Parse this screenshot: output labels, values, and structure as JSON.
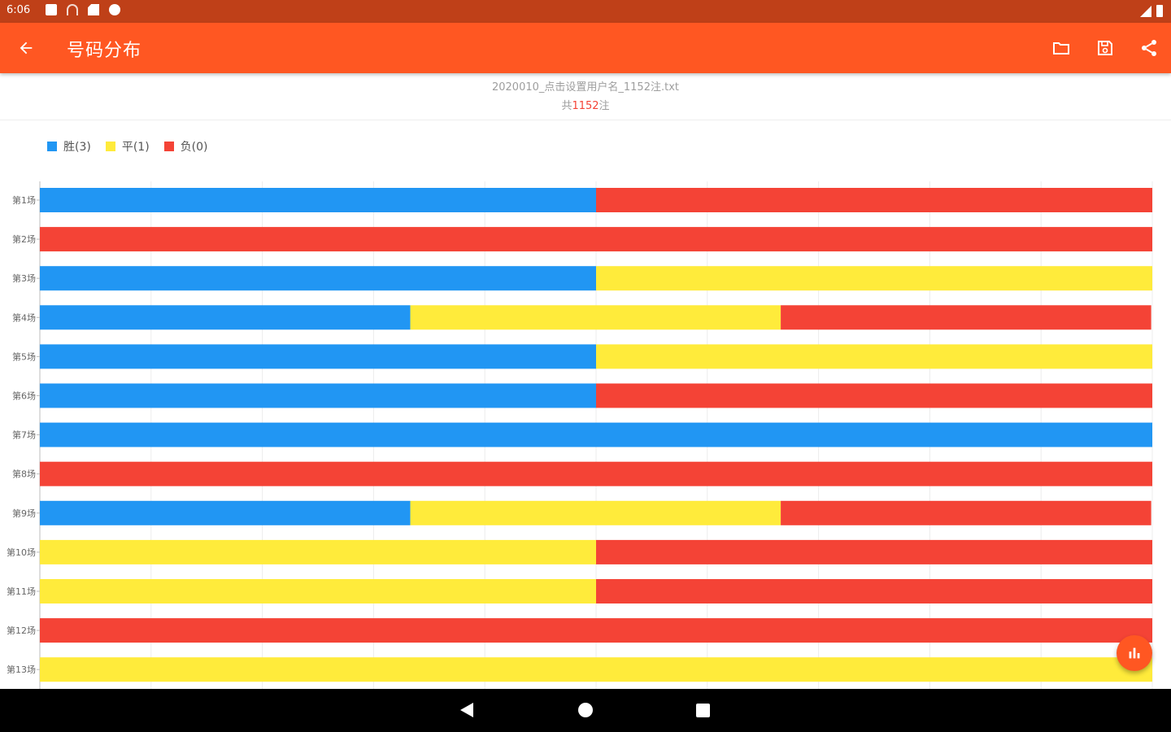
{
  "status_bar": {
    "time": "6:06"
  },
  "app_bar": {
    "title": "号码分布",
    "icons": [
      "back-arrow-icon",
      "folder-icon",
      "save-icon",
      "share-icon"
    ]
  },
  "file_info": {
    "file_name": "2020010_点击设置用户名_1152注.txt",
    "count_prefix": "共",
    "count_value": "1152",
    "count_suffix": "注"
  },
  "colors": {
    "win": "#2196f3",
    "draw": "#ffeb3b",
    "lose": "#f44336",
    "accent": "#ff5722"
  },
  "legend": [
    {
      "label": "胜(3)",
      "color": "#2196f3"
    },
    {
      "label": "平(1)",
      "color": "#ffeb3b"
    },
    {
      "label": "负(0)",
      "color": "#f44336"
    }
  ],
  "chart_data": {
    "type": "bar",
    "orientation": "horizontal",
    "stacked": true,
    "percent": true,
    "categories": [
      "第1场",
      "第2场",
      "第3场",
      "第4场",
      "第5场",
      "第6场",
      "第7场",
      "第8场",
      "第9场",
      "第10场",
      "第11场",
      "第12场",
      "第13场"
    ],
    "series": [
      {
        "name": "胜(3)",
        "color": "#2196f3",
        "values": [
          0.5,
          0,
          0.5,
          0.333,
          0.5,
          0.5,
          1,
          0,
          0.333,
          0,
          0,
          0,
          0
        ]
      },
      {
        "name": "平(1)",
        "color": "#ffeb3b",
        "values": [
          0,
          0,
          0.5,
          0.333,
          0.5,
          0,
          0,
          0,
          0.333,
          0.5,
          0.5,
          0,
          1
        ]
      },
      {
        "name": "负(0)",
        "color": "#f44336",
        "values": [
          0.5,
          1,
          0,
          0.333,
          0,
          0.5,
          0,
          1,
          0.333,
          0.5,
          0.5,
          1,
          0
        ]
      }
    ],
    "xlim": [
      0,
      1
    ],
    "grid": true,
    "legend_position": "top-left"
  },
  "fab": {
    "icon": "bar-chart-icon"
  }
}
